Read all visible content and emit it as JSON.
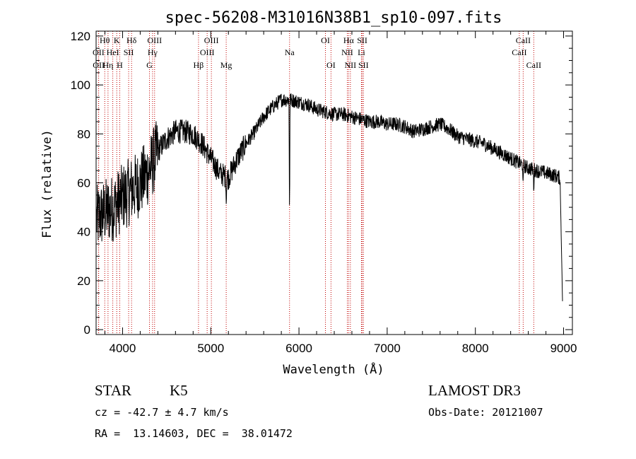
{
  "chart_data": {
    "type": "line",
    "title": "spec-56208-M31016N38B1_sp10-097.fits",
    "xlabel": "Wavelength (Å)",
    "ylabel": "Flux (relative)",
    "xlim": [
      3700,
      9100
    ],
    "ylim": [
      -2,
      122
    ],
    "xticks": [
      4000,
      5000,
      6000,
      7000,
      8000,
      9000
    ],
    "yticks": [
      0,
      20,
      40,
      60,
      80,
      100,
      120
    ],
    "grid": false,
    "legend": "none",
    "continuum": [
      [
        3700,
        45
      ],
      [
        3800,
        48
      ],
      [
        3900,
        50
      ],
      [
        4000,
        54
      ],
      [
        4100,
        57
      ],
      [
        4200,
        60
      ],
      [
        4300,
        65
      ],
      [
        4400,
        73
      ],
      [
        4500,
        78
      ],
      [
        4600,
        81
      ],
      [
        4700,
        81
      ],
      [
        4800,
        80
      ],
      [
        4900,
        76
      ],
      [
        5000,
        70
      ],
      [
        5100,
        64
      ],
      [
        5200,
        62
      ],
      [
        5300,
        70
      ],
      [
        5400,
        76
      ],
      [
        5500,
        81
      ],
      [
        5600,
        87
      ],
      [
        5700,
        91
      ],
      [
        5800,
        94
      ],
      [
        5900,
        94
      ],
      [
        6000,
        93
      ],
      [
        6100,
        92
      ],
      [
        6200,
        90
      ],
      [
        6300,
        89
      ],
      [
        6400,
        88
      ],
      [
        6500,
        88
      ],
      [
        6600,
        87
      ],
      [
        6700,
        86
      ],
      [
        6800,
        85
      ],
      [
        6900,
        85
      ],
      [
        7000,
        84
      ],
      [
        7100,
        84
      ],
      [
        7200,
        83
      ],
      [
        7300,
        81
      ],
      [
        7400,
        82
      ],
      [
        7500,
        83
      ],
      [
        7600,
        84
      ],
      [
        7700,
        82
      ],
      [
        7800,
        79
      ],
      [
        7900,
        78
      ],
      [
        8000,
        77
      ],
      [
        8100,
        76
      ],
      [
        8200,
        74
      ],
      [
        8300,
        72
      ],
      [
        8400,
        70
      ],
      [
        8500,
        68
      ],
      [
        8600,
        66
      ],
      [
        8700,
        65
      ],
      [
        8800,
        64
      ],
      [
        8900,
        63
      ],
      [
        8960,
        62
      ]
    ],
    "features": [
      {
        "x": 5893,
        "depth": 50
      },
      {
        "x": 5175,
        "depth": 10
      },
      {
        "x": 8542,
        "depth": 10
      },
      {
        "x": 8662,
        "depth": 8
      }
    ],
    "lines_row1": [
      {
        "label": "Hθ",
        "x": 3798
      },
      {
        "label": "K",
        "x": 3934
      },
      {
        "label": "Hδ",
        "x": 4102
      },
      {
        "label": "OIII",
        "x": 4363
      },
      {
        "label": "OIII",
        "x": 5007
      },
      {
        "label": "OI",
        "x": 6300
      },
      {
        "label": "Hα",
        "x": 6563
      },
      {
        "label": "SII",
        "x": 6717
      },
      {
        "label": "CaII",
        "x": 8542
      }
    ],
    "lines_row2": [
      {
        "label": "OII",
        "x": 3727
      },
      {
        "label": "HeI",
        "x": 3889
      },
      {
        "label": "SII",
        "x": 4069
      },
      {
        "label": "Hγ",
        "x": 4340
      },
      {
        "label": "OIII",
        "x": 4959
      },
      {
        "label": "Na",
        "x": 5893
      },
      {
        "label": "NII",
        "x": 6548
      },
      {
        "label": "Li",
        "x": 6708
      },
      {
        "label": "CaII",
        "x": 8498
      }
    ],
    "lines_row3": [
      {
        "label": "OII",
        "x": 3729
      },
      {
        "label": "Hη",
        "x": 3835
      },
      {
        "label": "H",
        "x": 3968
      },
      {
        "label": "G",
        "x": 4305
      },
      {
        "label": "Hβ",
        "x": 4861
      },
      {
        "label": "Mg",
        "x": 5175
      },
      {
        "label": "OI",
        "x": 6363
      },
      {
        "label": "NII",
        "x": 6583
      },
      {
        "label": "SII",
        "x": 6731
      },
      {
        "label": "CaII",
        "x": 8662
      }
    ]
  },
  "info": {
    "class": "STAR",
    "subclass": "K5",
    "survey": "LAMOST DR3",
    "cz": "cz = -42.7 ± 4.7 km/s",
    "obs_date": "Obs-Date: 20121007",
    "coords": "RA =  13.14603, DEC =  38.01472"
  }
}
